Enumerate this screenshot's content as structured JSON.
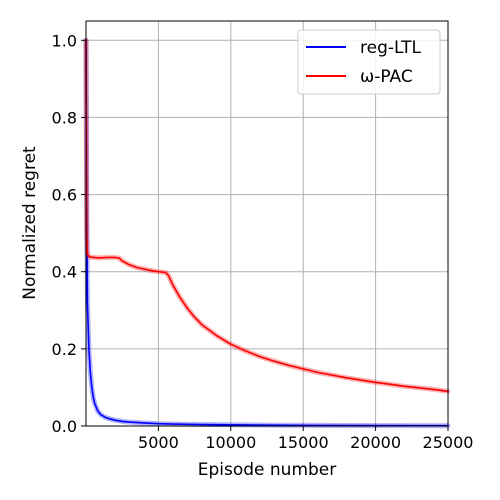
{
  "chart_data": {
    "type": "line",
    "xlabel": "Episode number",
    "ylabel": "Normalized regret",
    "xlim": [
      0,
      25000
    ],
    "ylim": [
      0,
      1.05
    ],
    "xticks": [
      5000,
      10000,
      15000,
      20000,
      25000
    ],
    "xtick_labels": [
      "5000",
      "10000",
      "15000",
      "20000",
      "25000"
    ],
    "yticks": [
      0.0,
      0.2,
      0.4,
      0.6,
      0.8,
      1.0
    ],
    "ytick_labels": [
      "0.0",
      "0.2",
      "0.4",
      "0.6",
      "0.8",
      "1.0"
    ],
    "grid": true,
    "legend_position": "top-right",
    "series": [
      {
        "name": "reg-LTL",
        "color": "#0000ff",
        "x": [
          0,
          50,
          100,
          200,
          300,
          400,
          500,
          600,
          800,
          1000,
          1300,
          1600,
          2000,
          2500,
          3000,
          4000,
          5000,
          6000,
          8000,
          10000,
          13000,
          16000,
          20000,
          25000
        ],
        "y": [
          1.0,
          0.6,
          0.32,
          0.2,
          0.14,
          0.1,
          0.075,
          0.058,
          0.04,
          0.03,
          0.023,
          0.019,
          0.015,
          0.012,
          0.01,
          0.008,
          0.006,
          0.005,
          0.004,
          0.003,
          0.002,
          0.0015,
          0.001,
          0.0008
        ]
      },
      {
        "name": "ω-PAC",
        "color": "#ff0000",
        "x": [
          0,
          40,
          100,
          200,
          300,
          500,
          800,
          1000,
          1500,
          2000,
          2300,
          2500,
          3000,
          3500,
          4000,
          4500,
          5000,
          5500,
          5700,
          6000,
          6500,
          7000,
          7500,
          8000,
          9000,
          10000,
          11000,
          12000,
          13000,
          14000,
          15000,
          16000,
          17000,
          18000,
          19000,
          20000,
          21000,
          22000,
          23000,
          24000,
          25000
        ],
        "y": [
          1.0,
          0.5,
          0.445,
          0.44,
          0.438,
          0.437,
          0.436,
          0.436,
          0.437,
          0.437,
          0.435,
          0.428,
          0.418,
          0.411,
          0.407,
          0.403,
          0.4,
          0.398,
          0.39,
          0.365,
          0.333,
          0.305,
          0.282,
          0.263,
          0.235,
          0.212,
          0.195,
          0.18,
          0.168,
          0.157,
          0.148,
          0.139,
          0.132,
          0.125,
          0.119,
          0.113,
          0.108,
          0.103,
          0.099,
          0.095,
          0.09
        ]
      }
    ]
  }
}
